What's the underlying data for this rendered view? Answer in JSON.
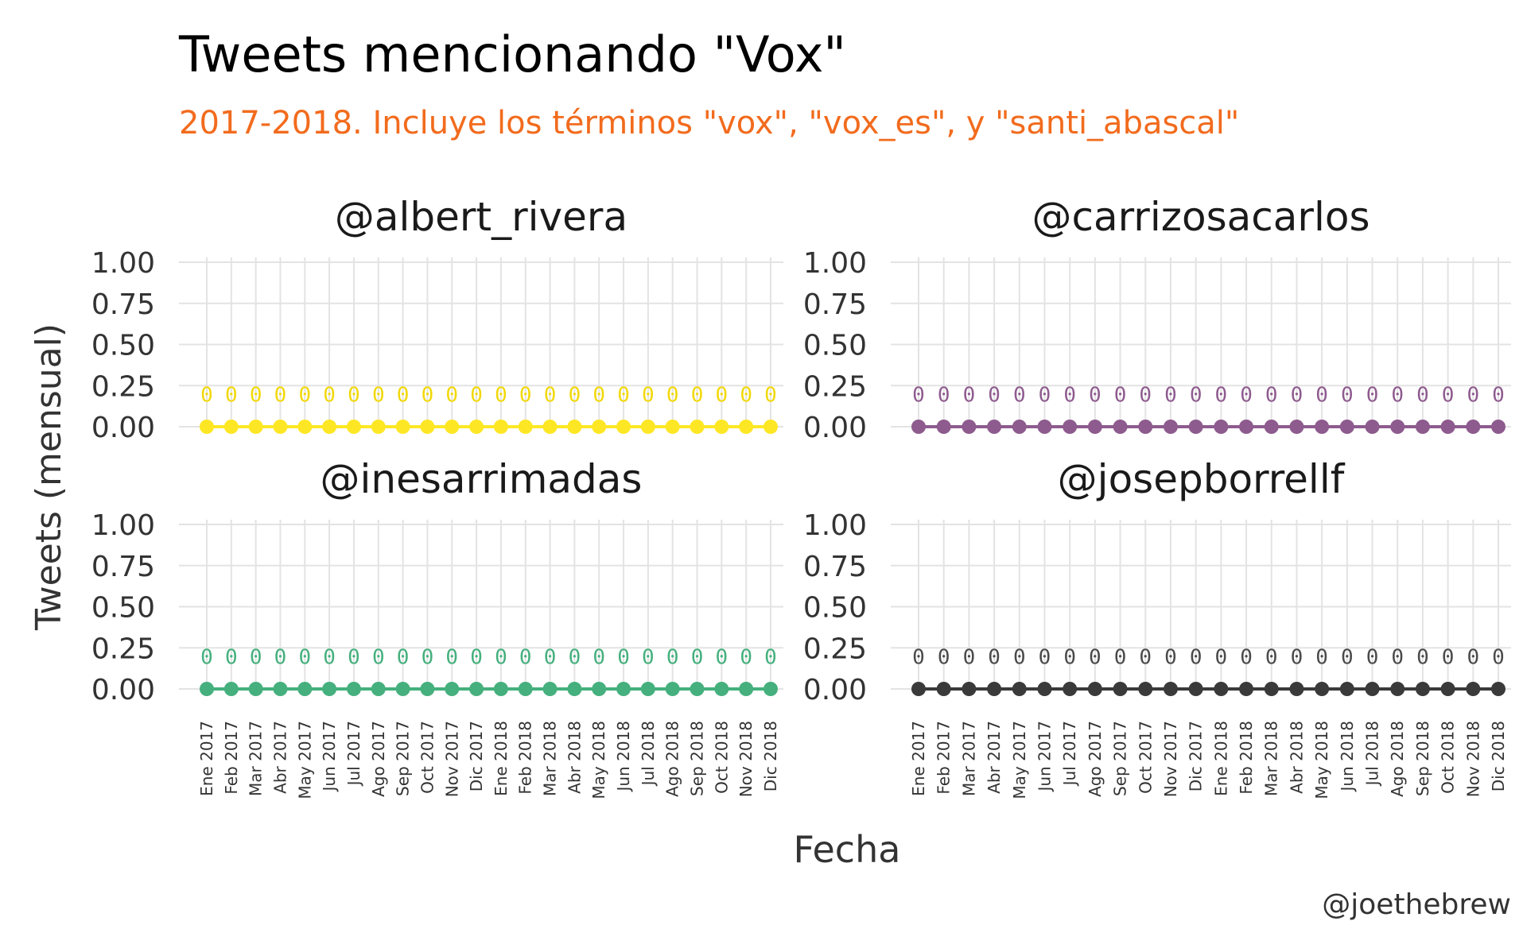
{
  "chart_data": {
    "type": "line",
    "title": "Tweets mencionando \"Vox\"",
    "subtitle": "2017-2018. Incluye los términos \"vox\", \"vox_es\", y \"santi_abascal\"",
    "xlabel": "Fecha",
    "ylabel": "Tweets (mensual)",
    "caption": "@joethebrew",
    "ylim": [
      0,
      1
    ],
    "yticks": [
      "0.00",
      "0.25",
      "0.50",
      "0.75",
      "1.00"
    ],
    "grid": true,
    "legend": "none",
    "categories": [
      "Ene 2017",
      "Feb 2017",
      "Mar 2017",
      "Abr 2017",
      "May 2017",
      "Jun 2017",
      "Jul 2017",
      "Ago 2017",
      "Sep 2017",
      "Oct 2017",
      "Nov 2017",
      "Dic 2017",
      "Ene 2018",
      "Feb 2018",
      "Mar 2018",
      "Abr 2018",
      "May 2018",
      "Jun 2018",
      "Jul 2018",
      "Ago 2018",
      "Sep 2018",
      "Oct 2018",
      "Nov 2018",
      "Dic 2018"
    ],
    "panels": [
      {
        "name": "@albert_rivera",
        "color": "#FDE725",
        "label_color": "#F2D80A",
        "values": [
          0,
          0,
          0,
          0,
          0,
          0,
          0,
          0,
          0,
          0,
          0,
          0,
          0,
          0,
          0,
          0,
          0,
          0,
          0,
          0,
          0,
          0,
          0,
          0
        ]
      },
      {
        "name": "@carrizosacarlos",
        "color": "#8E5B8E",
        "label_color": "#8E5B8E",
        "values": [
          0,
          0,
          0,
          0,
          0,
          0,
          0,
          0,
          0,
          0,
          0,
          0,
          0,
          0,
          0,
          0,
          0,
          0,
          0,
          0,
          0,
          0,
          0,
          0
        ]
      },
      {
        "name": "@inesarrimadas",
        "color": "#45B07D",
        "label_color": "#45B07D",
        "values": [
          0,
          0,
          0,
          0,
          0,
          0,
          0,
          0,
          0,
          0,
          0,
          0,
          0,
          0,
          0,
          0,
          0,
          0,
          0,
          0,
          0,
          0,
          0,
          0
        ]
      },
      {
        "name": "@josepborrellf",
        "color": "#3A3A3A",
        "label_color": "#4A4A4A",
        "values": [
          0,
          0,
          0,
          0,
          0,
          0,
          0,
          0,
          0,
          0,
          0,
          0,
          0,
          0,
          0,
          0,
          0,
          0,
          0,
          0,
          0,
          0,
          0,
          0
        ]
      }
    ]
  },
  "colors": {
    "subtitle": "#F26B1D",
    "grid": "#E3E3E3"
  }
}
